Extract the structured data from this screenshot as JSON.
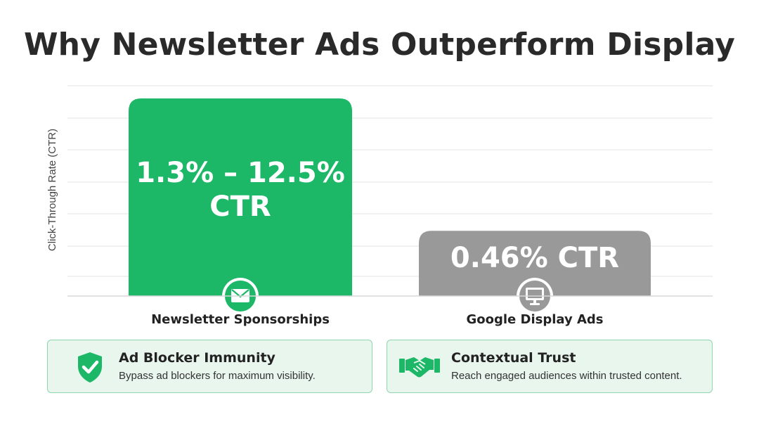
{
  "title": "Why Newsletter Ads Outperform Display",
  "colors": {
    "newsletter": "#1db768",
    "display": "#999999",
    "accent": "#1db768",
    "card_bg": "#e8f6ee",
    "card_border": "#8fd5ad"
  },
  "chart_data": {
    "type": "bar",
    "ylabel": "Click-Through Rate (CTR)",
    "grid": true,
    "categories": [
      "Newsletter Sponsorships",
      "Google Display Ads"
    ],
    "bars": [
      {
        "category": "Newsletter Sponsorships",
        "label": "1.3% – 12.5% CTR",
        "color": "#1db768",
        "icon": "envelope-icon",
        "relative_height": 1.0
      },
      {
        "category": "Google Display Ads",
        "label": "0.46% CTR",
        "color": "#999999",
        "icon": "monitor-icon",
        "relative_height": 0.33
      }
    ]
  },
  "labels": {
    "bar1_line1": "1.3% – 12.5%",
    "bar1_line2": "CTR",
    "bar2": "0.46% CTR"
  },
  "cards": [
    {
      "icon": "shield-check-icon",
      "title": "Ad Blocker Immunity",
      "description": "Bypass ad blockers for maximum visibility."
    },
    {
      "icon": "handshake-icon",
      "title": "Contextual Trust",
      "description": "Reach engaged audiences within trusted content."
    }
  ]
}
